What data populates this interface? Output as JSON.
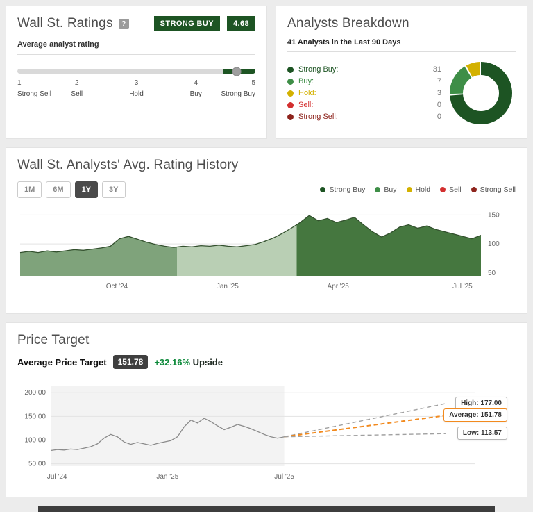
{
  "ratings": {
    "title": "Wall St. Ratings",
    "help_icon": "?",
    "consensus": "STRONG BUY",
    "score": "4.68",
    "slider_label": "Average analyst rating",
    "slider": {
      "min": 1,
      "max": 5,
      "value": 4.68,
      "fill_from": 4.45
    },
    "ticks": [
      {
        "num": "1",
        "label": "Strong Sell"
      },
      {
        "num": "2",
        "label": "Sell"
      },
      {
        "num": "3",
        "label": "Hold"
      },
      {
        "num": "4",
        "label": "Buy"
      },
      {
        "num": "5",
        "label": "Strong Buy"
      }
    ]
  },
  "breakdown": {
    "title": "Analysts Breakdown",
    "subtitle": "41 Analysts in the Last 90 Days",
    "rows": [
      {
        "label": "Strong Buy:",
        "value": 31,
        "color": "#1d5423"
      },
      {
        "label": "Buy:",
        "value": 7,
        "color": "#3e8e47"
      },
      {
        "label": "Hold:",
        "value": 3,
        "color": "#d3b100"
      },
      {
        "label": "Sell:",
        "value": 0,
        "color": "#d32f2f"
      },
      {
        "label": "Strong Sell:",
        "value": 0,
        "color": "#8e241d"
      }
    ]
  },
  "history": {
    "title": "Wall St. Analysts' Avg. Rating History",
    "ranges": [
      "1M",
      "6M",
      "1Y",
      "3Y"
    ],
    "active_range": "1Y",
    "legend": [
      {
        "label": "Strong Buy",
        "color": "#1d5423"
      },
      {
        "label": "Buy",
        "color": "#3e8e47"
      },
      {
        "label": "Hold",
        "color": "#d3b100"
      },
      {
        "label": "Sell",
        "color": "#d32f2f"
      },
      {
        "label": "Strong Sell",
        "color": "#8e241d"
      }
    ]
  },
  "price_target": {
    "title": "Price Target",
    "avg_label": "Average Price Target",
    "avg_value": "151.78",
    "upside_pct": "+32.16%",
    "upside_word": "Upside",
    "callouts": {
      "high": {
        "label": "High: 177.00",
        "value": 177.0
      },
      "average": {
        "label": "Average: 151.78",
        "value": 151.78
      },
      "low": {
        "label": "Low: 113.57",
        "value": 113.57
      }
    }
  },
  "chart_data": [
    {
      "type": "area",
      "title": "Wall St. Analysts' Avg. Rating History",
      "ylim": [
        45,
        160
      ],
      "yticks": [
        {
          "v": 150,
          "label": "150"
        },
        {
          "v": 100,
          "label": "100"
        },
        {
          "v": 50,
          "label": "50"
        }
      ],
      "xticks": [
        {
          "pos": 0.21,
          "label": "Oct '24"
        },
        {
          "pos": 0.45,
          "label": "Jan '25"
        },
        {
          "pos": 0.69,
          "label": "Apr '25"
        },
        {
          "pos": 0.96,
          "label": "Jul '25"
        }
      ],
      "bands": [
        {
          "from": 0,
          "to": 0.34,
          "color": "#7fa37b"
        },
        {
          "from": 0.34,
          "to": 0.6,
          "color": "#b9cfb4"
        },
        {
          "from": 0.6,
          "to": 1,
          "color": "#45773f"
        }
      ],
      "line_color": "#33502e",
      "values": [
        85,
        87,
        85,
        88,
        86,
        88,
        90,
        89,
        91,
        93,
        96,
        109,
        113,
        108,
        103,
        99,
        96,
        94,
        96,
        95,
        97,
        96,
        98,
        96,
        95,
        97,
        99,
        104,
        110,
        118,
        127,
        137,
        149,
        140,
        144,
        137,
        141,
        146,
        133,
        121,
        112,
        119,
        129,
        133,
        127,
        131,
        125,
        121,
        117,
        113,
        109,
        115
      ]
    },
    {
      "type": "line",
      "title": "Price Target",
      "ylim": [
        45,
        215
      ],
      "yticks": [
        {
          "v": 200,
          "label": "200.00"
        },
        {
          "v": 150,
          "label": "150.00"
        },
        {
          "v": 100,
          "label": "100.00"
        },
        {
          "v": 50,
          "label": "50.00"
        }
      ],
      "xticks": [
        {
          "pos": 0.015,
          "label": "Jul '24"
        },
        {
          "pos": 0.275,
          "label": "Jan '25"
        },
        {
          "pos": 0.55,
          "label": "Jul '25"
        }
      ],
      "history_end_pos": 0.55,
      "forecast_end_pos": 0.93,
      "history_color": "#8a8a8a",
      "forecast_colors": {
        "high": "#a0a0a0",
        "average": "#f28a1e",
        "low": "#a0a0a0"
      },
      "values": [
        78,
        80,
        79,
        81,
        80,
        83,
        86,
        92,
        104,
        112,
        107,
        96,
        91,
        95,
        92,
        89,
        93,
        96,
        99,
        107,
        128,
        142,
        136,
        146,
        139,
        130,
        122,
        127,
        133,
        129,
        124,
        118,
        112,
        107,
        104,
        107
      ],
      "forecast": {
        "high": 177.0,
        "average": 151.78,
        "low": 113.57
      }
    }
  ]
}
